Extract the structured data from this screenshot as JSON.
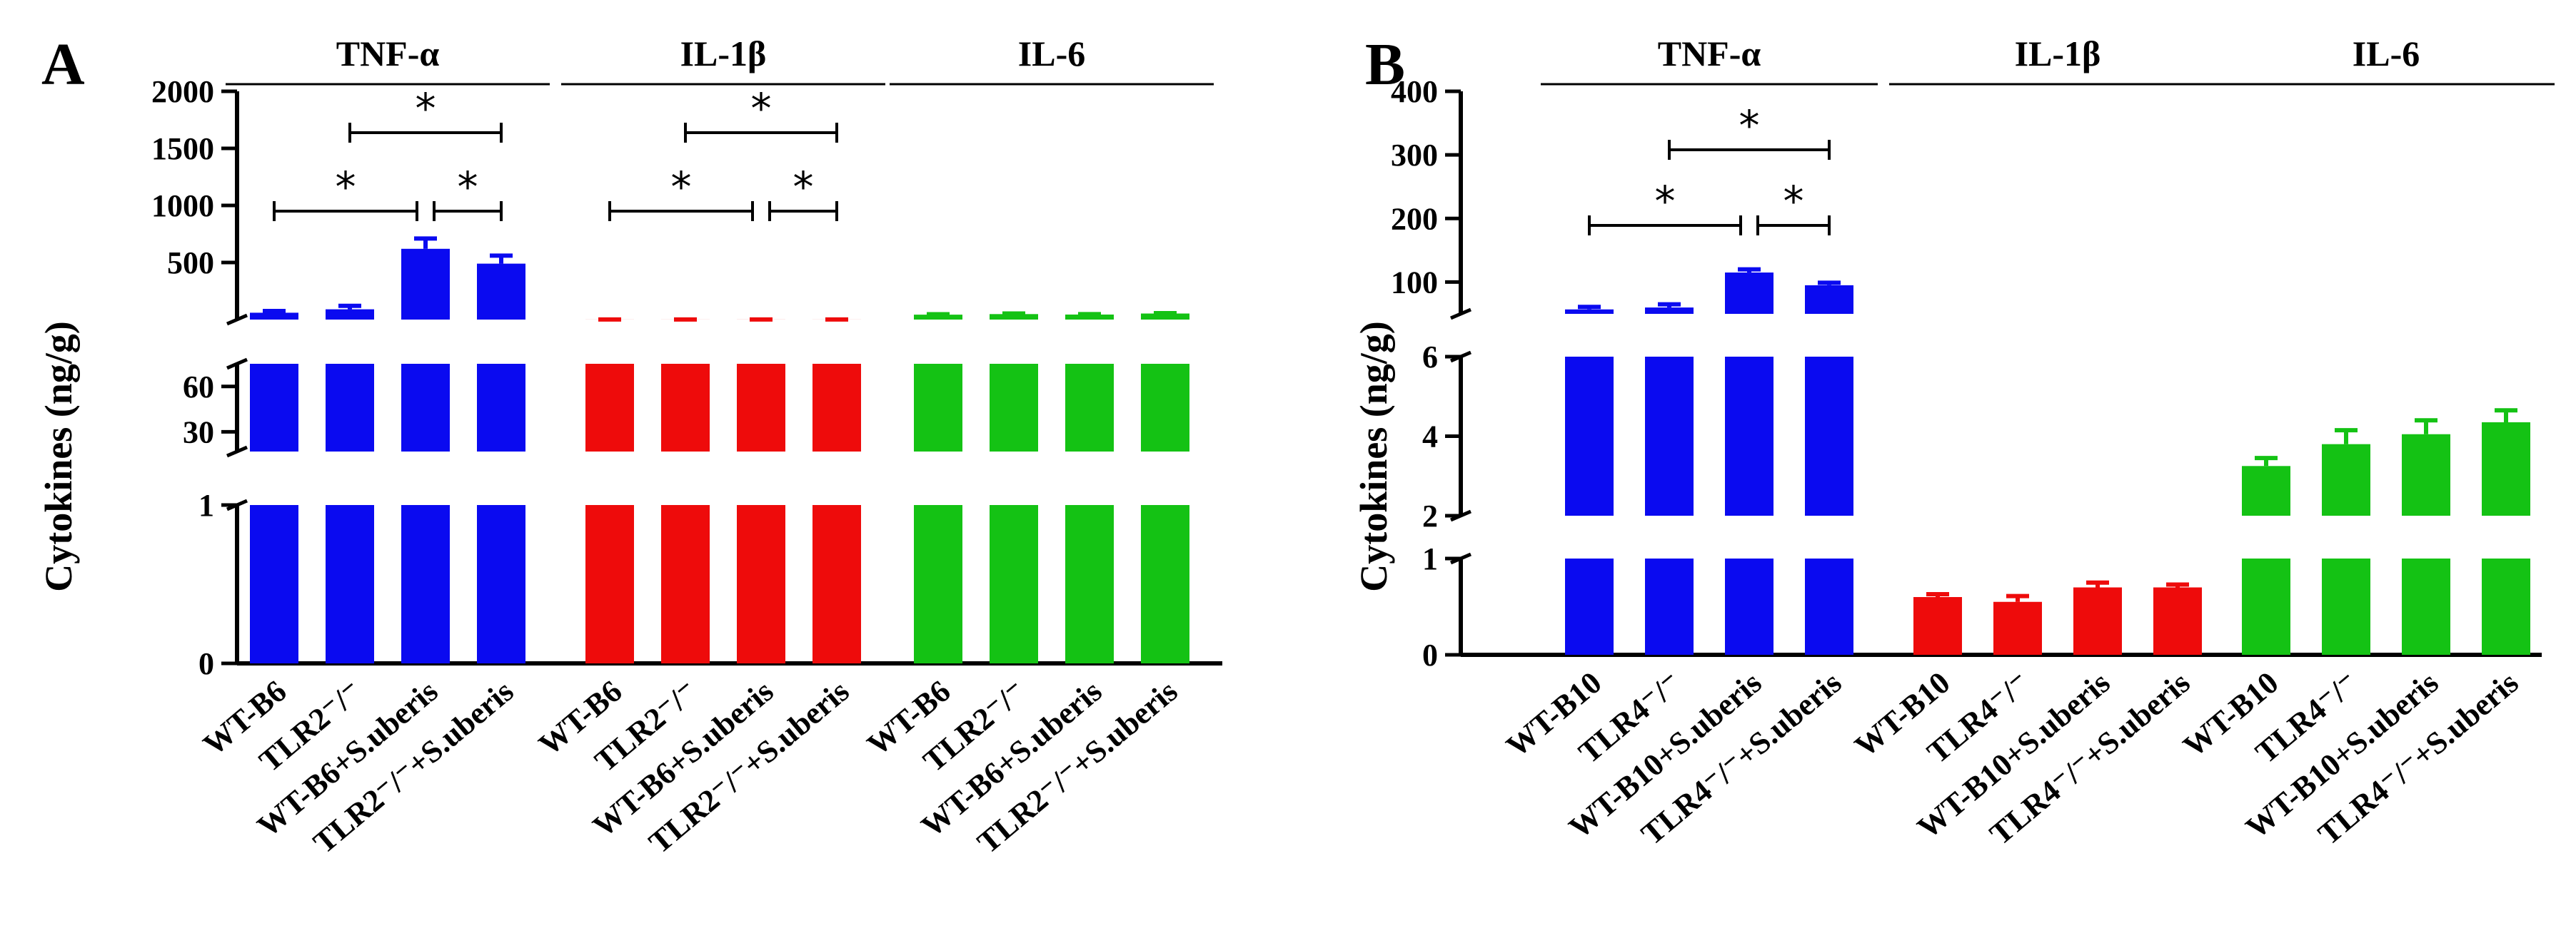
{
  "colors": {
    "tnf": "#0a0af0",
    "il1b": "#ee0b0b",
    "il6": "#14c214"
  },
  "chart_data": [
    {
      "type": "bar",
      "panel": "A",
      "ylabel": "Cytokines (ng/g)",
      "axis_segments": [
        {
          "range": [
            0,
            1
          ],
          "ticks": [
            "0",
            "1"
          ]
        },
        {
          "range": [
            17,
            75
          ],
          "ticks": [
            "30",
            "60"
          ]
        },
        {
          "range": [
            0,
            2000
          ],
          "ticks": [
            "500",
            "1000",
            "1500",
            "2000"
          ]
        }
      ],
      "groups": [
        {
          "name": "TNF-α",
          "color_key": "tnf",
          "categories": [
            "WT-B6",
            "TLR2⁻/⁻",
            "WT-B6+S.uberis",
            "TLR2⁻/⁻+S.uberis"
          ],
          "values": [
            60,
            90,
            620,
            490
          ],
          "errors": [
            15,
            30,
            90,
            70
          ],
          "significance": [
            {
              "pair": [
                0,
                2
              ],
              "label": "*"
            },
            {
              "pair": [
                2,
                3
              ],
              "label": "*"
            },
            {
              "pair": [
                1,
                3
              ],
              "label": "*"
            }
          ]
        },
        {
          "name": "IL-1β",
          "color_key": "il1b",
          "categories": [
            "WT-B6",
            "TLR2⁻/⁻",
            "WT-B6+S.uberis",
            "TLR2⁻/⁻+S.uberis"
          ],
          "values": [
            0.43,
            0.38,
            0.52,
            0.41
          ],
          "errors": [
            0.03,
            0.03,
            0.03,
            0.05
          ],
          "significance": [
            {
              "pair": [
                0,
                2
              ],
              "label": "*"
            },
            {
              "pair": [
                2,
                3
              ],
              "label": "*"
            },
            {
              "pair": [
                1,
                3
              ],
              "label": "*"
            }
          ]
        },
        {
          "name": "IL-6",
          "color_key": "il6",
          "categories": [
            "WT-B6",
            "TLR2⁻/⁻",
            "WT-B6+S.uberis",
            "TLR2⁻/⁻+S.uberis"
          ],
          "values": [
            43,
            48,
            44,
            53
          ],
          "errors": [
            4,
            5,
            4,
            3
          ],
          "significance": []
        }
      ]
    },
    {
      "type": "bar",
      "panel": "B",
      "ylabel": "Cytokines (ng/g)",
      "axis_segments": [
        {
          "range": [
            0,
            1
          ],
          "ticks": [
            "0",
            "1"
          ]
        },
        {
          "range": [
            2,
            6
          ],
          "ticks": [
            "2",
            "4",
            "6"
          ]
        },
        {
          "range": [
            50,
            400
          ],
          "ticks": [
            "100",
            "200",
            "300",
            "400"
          ]
        }
      ],
      "groups": [
        {
          "name": "TNF-α",
          "color_key": "tnf",
          "categories": [
            "WT-B10",
            "TLR4⁻/⁻",
            "WT-B10+S.uberis",
            "TLR4⁻/⁻+S.uberis"
          ],
          "values": [
            57,
            60,
            115,
            95
          ],
          "errors": [
            4,
            5,
            5,
            4
          ],
          "significance": [
            {
              "pair": [
                0,
                2
              ],
              "label": "*"
            },
            {
              "pair": [
                2,
                3
              ],
              "label": "*"
            },
            {
              "pair": [
                1,
                3
              ],
              "label": "*"
            }
          ]
        },
        {
          "name": "IL-1β",
          "color_key": "il1b",
          "categories": [
            "WT-B10",
            "TLR4⁻/⁻",
            "WT-B10+S.uberis",
            "TLR4⁻/⁻+S.uberis"
          ],
          "values": [
            0.6,
            0.55,
            0.7,
            0.7
          ],
          "errors": [
            0.03,
            0.06,
            0.05,
            0.03
          ],
          "significance": []
        },
        {
          "name": "IL-6",
          "color_key": "il6",
          "categories": [
            "WT-B10",
            "TLR4⁻/⁻",
            "WT-B10+S.uberis",
            "TLR4⁻/⁻+S.uberis"
          ],
          "values": [
            3.25,
            3.8,
            4.05,
            4.35
          ],
          "errors": [
            0.2,
            0.35,
            0.35,
            0.3
          ],
          "significance": []
        }
      ]
    }
  ]
}
